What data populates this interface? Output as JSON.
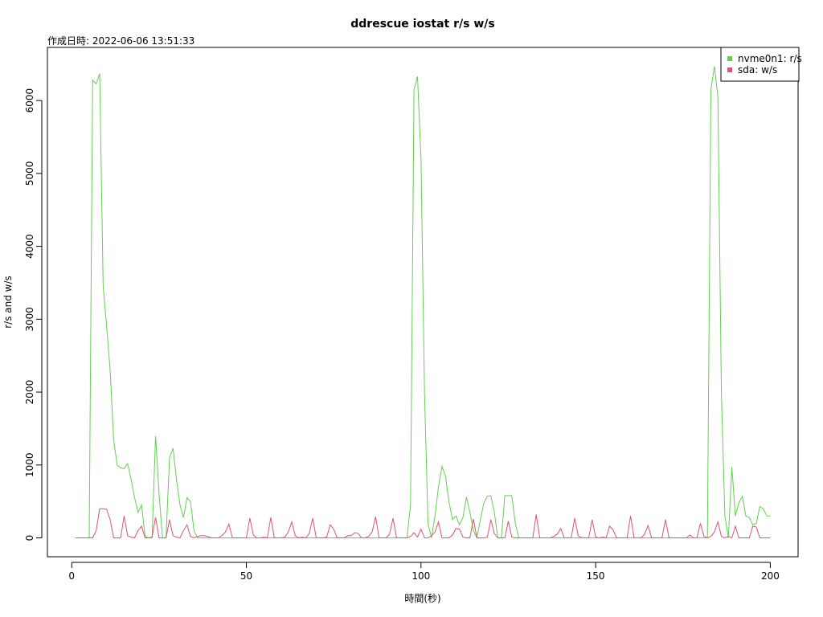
{
  "chart_data": {
    "type": "line",
    "title": "ddrescue iostat r/s w/s",
    "subtitle": "作成日時: 2022-06-06 13:51:33",
    "x_label": "時間(秒)",
    "y_label": "r/s and w/s",
    "x": [
      1,
      2,
      3,
      4,
      5,
      6,
      7,
      8,
      9,
      10,
      11,
      12,
      13,
      14,
      15,
      16,
      17,
      18,
      19,
      20,
      21,
      22,
      23,
      24,
      25,
      26,
      27,
      28,
      29,
      30,
      31,
      32,
      33,
      34,
      35,
      36,
      37,
      38,
      39,
      40,
      41,
      42,
      43,
      44,
      45,
      46,
      47,
      48,
      49,
      50,
      51,
      52,
      53,
      54,
      55,
      56,
      57,
      58,
      59,
      60,
      61,
      62,
      63,
      64,
      65,
      66,
      67,
      68,
      69,
      70,
      71,
      72,
      73,
      74,
      75,
      76,
      77,
      78,
      79,
      80,
      81,
      82,
      83,
      84,
      85,
      86,
      87,
      88,
      89,
      90,
      91,
      92,
      93,
      94,
      95,
      96,
      97,
      98,
      99,
      100,
      101,
      102,
      103,
      104,
      105,
      106,
      107,
      108,
      109,
      110,
      111,
      112,
      113,
      114,
      115,
      116,
      117,
      118,
      119,
      120,
      121,
      122,
      123,
      124,
      125,
      126,
      127,
      128,
      129,
      130,
      131,
      132,
      133,
      134,
      135,
      136,
      137,
      138,
      139,
      140,
      141,
      142,
      143,
      144,
      145,
      146,
      147,
      148,
      149,
      150,
      151,
      152,
      153,
      154,
      155,
      156,
      157,
      158,
      159,
      160,
      161,
      162,
      163,
      164,
      165,
      166,
      167,
      168,
      169,
      170,
      171,
      172,
      173,
      174,
      175,
      176,
      177,
      178,
      179,
      180,
      181,
      182,
      183,
      184,
      185,
      186,
      187,
      188,
      189,
      190,
      191,
      192,
      193,
      194,
      195,
      196,
      197,
      198,
      199,
      200
    ],
    "series": [
      {
        "name": "nvme0n1: r/s",
        "color": "#61D04F",
        "values": [
          0,
          0,
          0,
          0,
          0,
          6280,
          6230,
          6370,
          3450,
          2900,
          2300,
          1350,
          1000,
          960,
          950,
          1020,
          800,
          550,
          350,
          450,
          20,
          0,
          0,
          1400,
          600,
          0,
          0,
          1100,
          1230,
          800,
          450,
          280,
          550,
          500,
          100,
          0,
          0,
          0,
          0,
          0,
          0,
          0,
          0,
          0,
          0,
          0,
          0,
          0,
          0,
          0,
          0,
          0,
          0,
          0,
          0,
          0,
          0,
          0,
          0,
          0,
          0,
          0,
          0,
          0,
          0,
          0,
          0,
          0,
          0,
          0,
          0,
          0,
          0,
          0,
          0,
          0,
          0,
          0,
          0,
          0,
          0,
          0,
          0,
          0,
          0,
          0,
          0,
          0,
          0,
          0,
          0,
          0,
          0,
          0,
          0,
          0,
          450,
          6150,
          6330,
          5200,
          2000,
          200,
          0,
          300,
          700,
          980,
          850,
          500,
          250,
          300,
          180,
          280,
          560,
          350,
          100,
          0,
          250,
          480,
          570,
          580,
          350,
          0,
          0,
          580,
          580,
          580,
          200,
          0,
          0,
          0,
          0,
          0,
          0,
          0,
          0,
          0,
          0,
          0,
          0,
          0,
          0,
          0,
          0,
          0,
          0,
          0,
          0,
          0,
          0,
          0,
          0,
          0,
          0,
          0,
          0,
          0,
          0,
          0,
          0,
          0,
          0,
          0,
          0,
          0,
          0,
          0,
          0,
          0,
          0,
          0,
          0,
          0,
          0,
          0,
          0,
          0,
          0,
          0,
          0,
          0,
          0,
          0,
          6150,
          6470,
          6050,
          2000,
          300,
          0,
          970,
          300,
          480,
          570,
          300,
          280,
          180,
          200,
          430,
          400,
          300,
          300
        ]
      },
      {
        "name": "sda: w/s",
        "color": "#DF536B",
        "values": [
          0,
          0,
          0,
          0,
          0,
          0,
          100,
          400,
          400,
          390,
          250,
          0,
          0,
          0,
          300,
          30,
          10,
          0,
          100,
          160,
          0,
          0,
          10,
          280,
          0,
          0,
          0,
          250,
          30,
          10,
          0,
          100,
          180,
          20,
          0,
          20,
          30,
          30,
          20,
          0,
          0,
          0,
          30,
          80,
          190,
          0,
          0,
          0,
          0,
          0,
          270,
          40,
          0,
          0,
          10,
          0,
          280,
          0,
          0,
          0,
          10,
          80,
          220,
          30,
          0,
          10,
          0,
          60,
          270,
          0,
          0,
          0,
          10,
          180,
          120,
          0,
          0,
          0,
          30,
          30,
          70,
          60,
          0,
          0,
          20,
          80,
          290,
          0,
          0,
          0,
          50,
          270,
          0,
          0,
          0,
          0,
          20,
          70,
          10,
          120,
          0,
          0,
          30,
          80,
          220,
          0,
          0,
          0,
          40,
          130,
          120,
          10,
          0,
          0,
          260,
          0,
          0,
          0,
          10,
          250,
          60,
          0,
          0,
          0,
          230,
          10,
          0,
          0,
          0,
          0,
          0,
          0,
          320,
          0,
          0,
          0,
          0,
          20,
          50,
          130,
          0,
          0,
          0,
          270,
          30,
          0,
          0,
          0,
          250,
          10,
          0,
          10,
          0,
          160,
          110,
          0,
          0,
          0,
          0,
          300,
          0,
          0,
          0,
          50,
          170,
          0,
          0,
          0,
          0,
          250,
          0,
          0,
          0,
          0,
          0,
          0,
          40,
          0,
          0,
          200,
          20,
          0,
          20,
          80,
          220,
          20,
          0,
          20,
          0,
          160,
          0,
          0,
          0,
          0,
          160,
          150,
          0,
          0,
          0,
          0
        ]
      }
    ],
    "xlim": [
      -6.96,
      207.96
    ],
    "ylim": [
      -259,
      6729
    ],
    "xticks": [
      0,
      50,
      100,
      150,
      200
    ],
    "yticks": [
      0,
      1000,
      2000,
      3000,
      4000,
      5000,
      6000
    ],
    "legend_position": "top-right"
  }
}
